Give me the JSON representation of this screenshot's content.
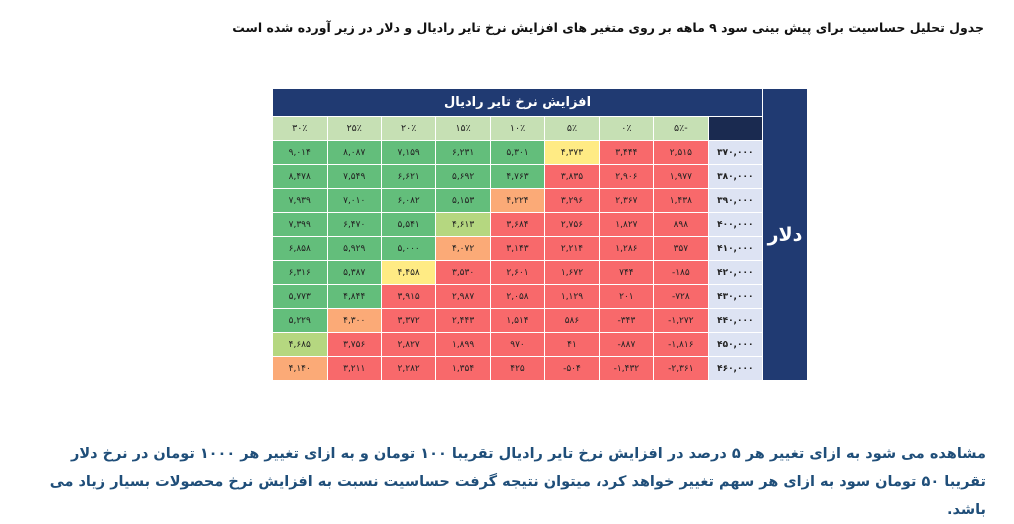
{
  "title": "جدول تحلیل حساسیت برای پیش بینی سود ۹ ماهه بر روی متغیر های افزایش نرخ تایر رادیال و دلار در زیر آورده شده است",
  "table": {
    "group_header": "افزایش نرخ  تایر رادیال",
    "side_header": "دلار",
    "columns": [
      "-۵٪",
      "۰٪",
      "۵٪",
      "۱۰٪",
      "۱۵٪",
      "۲۰٪",
      "۲۵٪",
      "۳۰٪"
    ],
    "rows": [
      {
        "label": "۳۷۰,۰۰۰",
        "values": [
          "۲,۵۱۵",
          "۳,۴۴۴",
          "۴,۳۷۳",
          "۵,۳۰۱",
          "۶,۲۳۱",
          "۷,۱۵۹",
          "۸,۰۸۷",
          "۹,۰۱۴"
        ]
      },
      {
        "label": "۳۸۰,۰۰۰",
        "values": [
          "۱,۹۷۷",
          "۲,۹۰۶",
          "۳,۸۳۵",
          "۴,۷۶۳",
          "۵,۶۹۲",
          "۶,۶۲۱",
          "۷,۵۴۹",
          "۸,۴۷۸"
        ]
      },
      {
        "label": "۳۹۰,۰۰۰",
        "values": [
          "۱,۴۳۸",
          "۲,۳۶۷",
          "۳,۲۹۶",
          "۴,۲۲۴",
          "۵,۱۵۳",
          "۶,۰۸۲",
          "۷,۰۱۰",
          "۷,۹۳۹"
        ]
      },
      {
        "label": "۴۰۰,۰۰۰",
        "values": [
          "۸۹۸",
          "۱,۸۲۷",
          "۲,۷۵۶",
          "۳,۶۸۴",
          "۴,۶۱۳",
          "۵,۵۴۱",
          "۶,۴۷۰",
          "۷,۳۹۹"
        ]
      },
      {
        "label": "۴۱۰,۰۰۰",
        "values": [
          "۳۵۷",
          "۱,۲۸۶",
          "۲,۲۱۴",
          "۳,۱۴۳",
          "۴,۰۷۲",
          "۵,۰۰۰",
          "۵,۹۲۹",
          "۶,۸۵۸"
        ]
      },
      {
        "label": "۴۲۰,۰۰۰",
        "values": [
          "-۱۸۵",
          "۷۴۴",
          "۱,۶۷۲",
          "۲,۶۰۱",
          "۳,۵۳۰",
          "۴,۴۵۸",
          "۵,۳۸۷",
          "۶,۳۱۶"
        ]
      },
      {
        "label": "۴۳۰,۰۰۰",
        "values": [
          "-۷۲۸",
          "۲۰۱",
          "۱,۱۲۹",
          "۲,۰۵۸",
          "۲,۹۸۷",
          "۳,۹۱۵",
          "۴,۸۴۴",
          "۵,۷۷۳"
        ]
      },
      {
        "label": "۴۴۰,۰۰۰",
        "values": [
          "-۱,۲۷۲",
          "-۳۴۳",
          "۵۸۶",
          "۱,۵۱۴",
          "۲,۴۴۳",
          "۳,۳۷۲",
          "۴,۳۰۰",
          "۵,۲۲۹"
        ]
      },
      {
        "label": "۴۵۰,۰۰۰",
        "values": [
          "-۱,۸۱۶",
          "-۸۸۷",
          "۴۱",
          "۹۷۰",
          "۱,۸۹۹",
          "۲,۸۲۷",
          "۳,۷۵۶",
          "۴,۶۸۵"
        ]
      },
      {
        "label": "۴۶۰,۰۰۰",
        "values": [
          "-۲,۳۶۱",
          "-۱,۴۳۲",
          "-۵۰۴",
          "۴۲۵",
          "۱,۳۵۴",
          "۲,۲۸۲",
          "۳,۲۱۱",
          "۴,۱۴۰"
        ]
      }
    ]
  },
  "paragraph": "مشاهده می شود به ازای تغییر هر ۵ درصد در افزایش نرخ تایر رادیال تقریبا ۱۰۰ تومان و به ازای تغییر هر ۱۰۰۰ تومان در نرخ دلار تقریبا ۵۰ تومان سود به ازای هر سهم تغییر خواهد کرد، میتوان نتیجه گرفت حساسیت نسبت به افزایش نرخ محصولات بسیار زیاد می باشد."
}
